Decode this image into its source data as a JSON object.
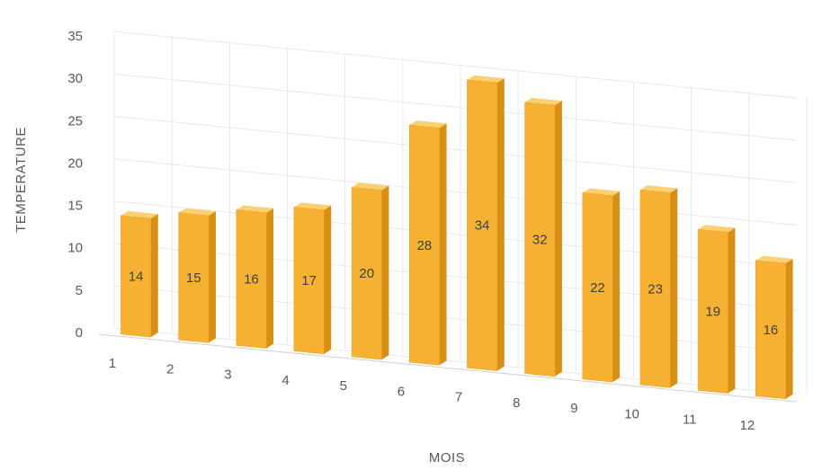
{
  "chart_data": {
    "type": "bar",
    "style": "3d-column",
    "categories": [
      "1",
      "2",
      "3",
      "4",
      "5",
      "6",
      "7",
      "8",
      "9",
      "10",
      "11",
      "12"
    ],
    "values": [
      14,
      15,
      16,
      17,
      20,
      28,
      34,
      32,
      22,
      23,
      19,
      16
    ],
    "xlabel": "MOIS",
    "ylabel": "TEMPERATURE",
    "ylim": [
      0,
      35
    ],
    "yticks": [
      "0",
      "5",
      "10",
      "15",
      "20",
      "25",
      "30",
      "35"
    ],
    "grid": true,
    "legend": "none",
    "data_labels": true,
    "colors": {
      "bar_front": "#f6b133",
      "bar_side": "#d98e14",
      "bar_top": "#fbd073",
      "grid": "#e9e9e9"
    }
  }
}
